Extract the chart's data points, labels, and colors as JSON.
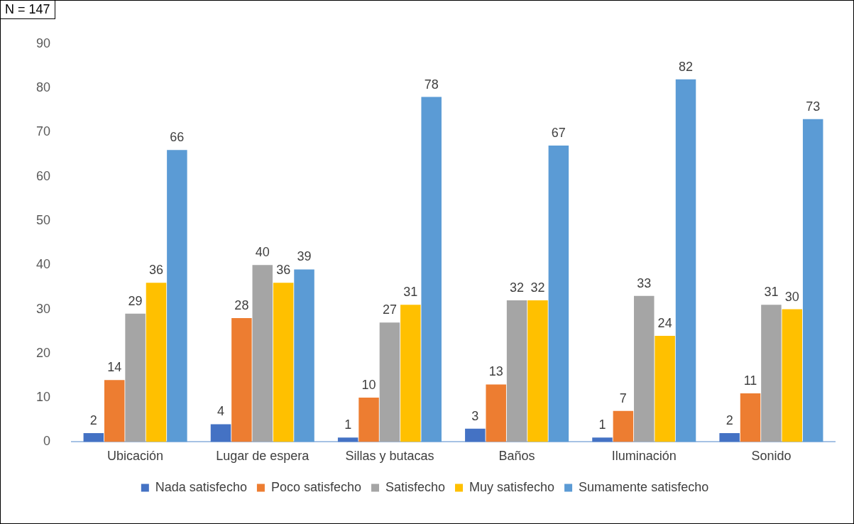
{
  "chart_data": {
    "type": "bar",
    "annotations": [
      "N = 147"
    ],
    "categories": [
      "Ubicación",
      "Lugar de espera",
      "Sillas y butacas",
      "Baños",
      "Iluminación",
      "Sonido"
    ],
    "series": [
      {
        "name": "Nada satisfecho",
        "color": "#4472c4",
        "values": [
          2,
          4,
          1,
          3,
          1,
          2
        ]
      },
      {
        "name": "Poco satisfecho",
        "color": "#ed7d31",
        "values": [
          14,
          28,
          10,
          13,
          7,
          11
        ]
      },
      {
        "name": "Satisfecho",
        "color": "#a5a5a5",
        "values": [
          29,
          40,
          27,
          32,
          33,
          31
        ]
      },
      {
        "name": "Muy satisfecho",
        "color": "#ffc000",
        "values": [
          36,
          36,
          31,
          32,
          24,
          30
        ]
      },
      {
        "name": "Sumamente satisfecho",
        "color": "#5b9bd5",
        "values": [
          66,
          39,
          78,
          67,
          82,
          73
        ]
      }
    ],
    "ylim": [
      0,
      90
    ],
    "yticks": [
      0,
      10,
      20,
      30,
      40,
      50,
      60,
      70,
      80,
      90
    ],
    "grid": false,
    "legend": "bottom",
    "data_labels": true
  }
}
